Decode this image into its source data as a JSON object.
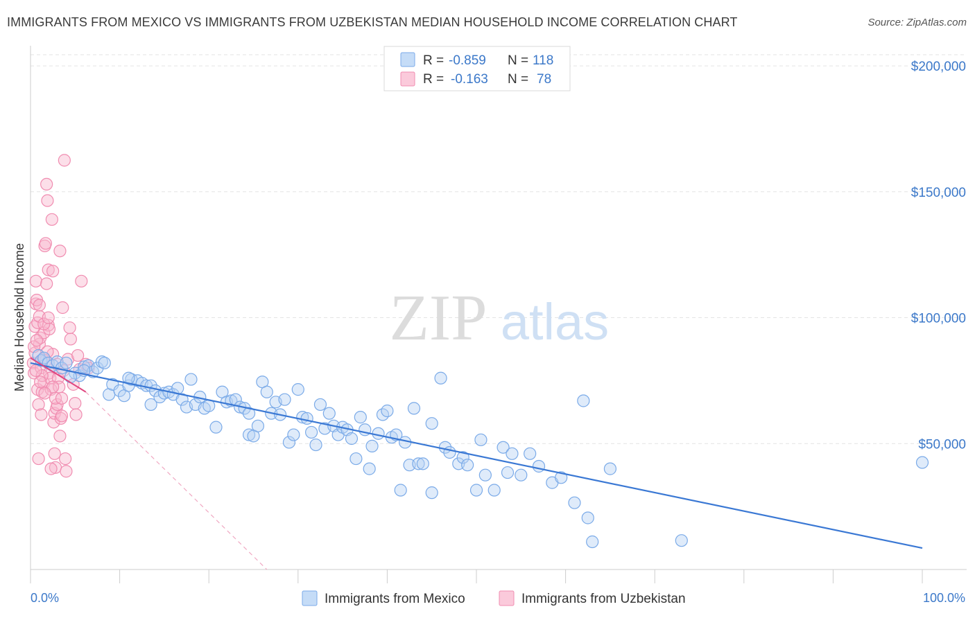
{
  "title": "IMMIGRANTS FROM MEXICO VS IMMIGRANTS FROM UZBEKISTAN MEDIAN HOUSEHOLD INCOME CORRELATION CHART",
  "source": "Source: ZipAtlas.com",
  "watermark": {
    "zip": "ZIP",
    "atlas": "atlas"
  },
  "stats": [
    {
      "r_label": "R =",
      "r": "-0.859",
      "n_label": "N =",
      "n": "118",
      "color": "#7aaae8"
    },
    {
      "r_label": "R =",
      "r": "-0.163",
      "n_label": "N =",
      "n": "78",
      "color": "#f08cb0"
    }
  ],
  "colors": {
    "mexico": "#7aaae8",
    "mexico_line": "#3a78d4",
    "uzbekistan": "#f08cb0",
    "uzbekistan_line": "#e0457f",
    "tick_text": "#3b78c9"
  },
  "chart_data": {
    "type": "scatter",
    "title": "IMMIGRANTS FROM MEXICO VS IMMIGRANTS FROM UZBEKISTAN MEDIAN HOUSEHOLD INCOME CORRELATION CHART",
    "xlabel": "",
    "ylabel": "Median Household Income",
    "xlim": [
      0,
      100
    ],
    "ylim": [
      0,
      208000
    ],
    "x_tick_labels": [
      "0.0%",
      "100.0%"
    ],
    "y_ticks": [
      50000,
      100000,
      150000,
      200000
    ],
    "y_tick_labels": [
      "$50,000",
      "$100,000",
      "$150,000",
      "$200,000"
    ],
    "grid": true,
    "legend_position": "bottom-center",
    "series": [
      {
        "name": "Immigrants from Mexico",
        "r": -0.859,
        "n": 118,
        "trend": {
          "x": [
            0,
            100
          ],
          "y": [
            82000,
            8500
          ]
        },
        "points": [
          [
            0.9,
            85000
          ],
          [
            1.2,
            83000
          ],
          [
            1.5,
            84000
          ],
          [
            2.0,
            82000
          ],
          [
            2.5,
            81000
          ],
          [
            3.0,
            82500
          ],
          [
            3.5,
            80000
          ],
          [
            4.0,
            82000
          ],
          [
            5.0,
            78000
          ],
          [
            5.5,
            77000
          ],
          [
            6.0,
            80500
          ],
          [
            6.5,
            81000
          ],
          [
            7.0,
            78500
          ],
          [
            7.5,
            80000
          ],
          [
            8.0,
            82500
          ],
          [
            8.3,
            82000
          ],
          [
            8.8,
            69500
          ],
          [
            9.2,
            73500
          ],
          [
            10.0,
            71000
          ],
          [
            10.5,
            69000
          ],
          [
            11.0,
            73000
          ],
          [
            11.3,
            75500
          ],
          [
            12.0,
            75000
          ],
          [
            12.5,
            74000
          ],
          [
            13.0,
            73000
          ],
          [
            13.5,
            73000
          ],
          [
            13.5,
            65500
          ],
          [
            14.0,
            71000
          ],
          [
            14.5,
            68500
          ],
          [
            15.0,
            70000
          ],
          [
            15.5,
            70500
          ],
          [
            16.0,
            69500
          ],
          [
            16.5,
            72000
          ],
          [
            17.0,
            67500
          ],
          [
            17.5,
            64500
          ],
          [
            18.0,
            75500
          ],
          [
            18.5,
            65500
          ],
          [
            19.0,
            68500
          ],
          [
            19.5,
            64000
          ],
          [
            20.0,
            65000
          ],
          [
            20.8,
            56500
          ],
          [
            21.5,
            70500
          ],
          [
            22.0,
            66500
          ],
          [
            22.5,
            67000
          ],
          [
            23.0,
            67500
          ],
          [
            23.5,
            64500
          ],
          [
            24.0,
            64000
          ],
          [
            24.5,
            62000
          ],
          [
            24.5,
            53500
          ],
          [
            25.0,
            53000
          ],
          [
            25.5,
            57000
          ],
          [
            26.0,
            74500
          ],
          [
            26.5,
            70500
          ],
          [
            27.0,
            62000
          ],
          [
            27.5,
            66500
          ],
          [
            28.0,
            61500
          ],
          [
            28.5,
            67500
          ],
          [
            29.0,
            50500
          ],
          [
            29.5,
            53500
          ],
          [
            30.0,
            71500
          ],
          [
            30.5,
            60500
          ],
          [
            31.0,
            60000
          ],
          [
            31.5,
            54500
          ],
          [
            32.0,
            49500
          ],
          [
            32.5,
            65500
          ],
          [
            33.0,
            56000
          ],
          [
            33.5,
            62000
          ],
          [
            34.0,
            57000
          ],
          [
            34.5,
            53500
          ],
          [
            35.0,
            56500
          ],
          [
            35.5,
            55500
          ],
          [
            36.0,
            52000
          ],
          [
            36.5,
            44000
          ],
          [
            37.0,
            60500
          ],
          [
            37.5,
            55500
          ],
          [
            38.0,
            40000
          ],
          [
            38.3,
            49000
          ],
          [
            39.0,
            54000
          ],
          [
            39.5,
            61500
          ],
          [
            40.0,
            63000
          ],
          [
            40.5,
            52500
          ],
          [
            41.0,
            53500
          ],
          [
            41.5,
            31500
          ],
          [
            42.0,
            50500
          ],
          [
            42.5,
            41500
          ],
          [
            43.0,
            64000
          ],
          [
            43.5,
            42000
          ],
          [
            44.0,
            42000
          ],
          [
            45.0,
            58000
          ],
          [
            45.0,
            30500
          ],
          [
            46.5,
            48500
          ],
          [
            47.0,
            46500
          ],
          [
            48.0,
            42000
          ],
          [
            48.5,
            44500
          ],
          [
            49.0,
            41500
          ],
          [
            50.0,
            31500
          ],
          [
            50.5,
            51500
          ],
          [
            51.0,
            37500
          ],
          [
            52.0,
            31500
          ],
          [
            53.0,
            48500
          ],
          [
            53.5,
            38500
          ],
          [
            54.0,
            46000
          ],
          [
            55.0,
            37500
          ],
          [
            56.0,
            46000
          ],
          [
            57.0,
            41000
          ],
          [
            58.5,
            34500
          ],
          [
            59.5,
            36500
          ],
          [
            61.0,
            26500
          ],
          [
            62.0,
            67000
          ],
          [
            62.5,
            20500
          ],
          [
            63.0,
            11000
          ],
          [
            65.0,
            40000
          ],
          [
            73.0,
            11500
          ],
          [
            100.0,
            42500
          ],
          [
            46.0,
            76000
          ],
          [
            4.5,
            76500
          ],
          [
            6.0,
            79000
          ],
          [
            11.0,
            76000
          ]
        ]
      },
      {
        "name": "Immigrants from Uzbekistan",
        "r": -0.163,
        "n": 78,
        "trend": {
          "x": [
            0,
            6.2
          ],
          "y": [
            84000,
            70500
          ]
        },
        "trend_dashed": {
          "x": [
            6.2,
            26.5
          ],
          "y": [
            70500,
            0
          ]
        },
        "points": [
          [
            0.3,
            82000
          ],
          [
            0.4,
            78000
          ],
          [
            0.5,
            86000
          ],
          [
            0.5,
            96500
          ],
          [
            0.6,
            105500
          ],
          [
            0.6,
            114500
          ],
          [
            0.7,
            107000
          ],
          [
            0.8,
            98000
          ],
          [
            0.8,
            71500
          ],
          [
            0.9,
            65500
          ],
          [
            0.9,
            44000
          ],
          [
            1.0,
            89500
          ],
          [
            1.0,
            100500
          ],
          [
            1.1,
            92000
          ],
          [
            1.2,
            80000
          ],
          [
            1.2,
            61500
          ],
          [
            1.3,
            70500
          ],
          [
            1.4,
            83500
          ],
          [
            1.5,
            94000
          ],
          [
            1.5,
            74000
          ],
          [
            1.6,
            128500
          ],
          [
            1.7,
            129500
          ],
          [
            1.8,
            113500
          ],
          [
            1.8,
            153000
          ],
          [
            1.9,
            146500
          ],
          [
            2.0,
            119000
          ],
          [
            2.0,
            97000
          ],
          [
            2.1,
            95500
          ],
          [
            2.1,
            78000
          ],
          [
            2.2,
            76000
          ],
          [
            2.3,
            71500
          ],
          [
            2.4,
            139000
          ],
          [
            2.5,
            118500
          ],
          [
            2.5,
            85500
          ],
          [
            2.6,
            58500
          ],
          [
            2.7,
            62000
          ],
          [
            2.7,
            46000
          ],
          [
            2.8,
            40500
          ],
          [
            2.9,
            64000
          ],
          [
            3.0,
            65500
          ],
          [
            3.0,
            81500
          ],
          [
            3.1,
            76000
          ],
          [
            3.2,
            72500
          ],
          [
            3.3,
            126500
          ],
          [
            3.3,
            53000
          ],
          [
            3.4,
            60000
          ],
          [
            3.5,
            61000
          ],
          [
            3.6,
            104000
          ],
          [
            3.7,
            79000
          ],
          [
            3.8,
            162500
          ],
          [
            3.9,
            44000
          ],
          [
            4.0,
            39000
          ],
          [
            4.2,
            83500
          ],
          [
            4.5,
            91500
          ],
          [
            4.8,
            73500
          ],
          [
            5.0,
            66000
          ],
          [
            5.1,
            61500
          ],
          [
            5.3,
            85000
          ],
          [
            5.5,
            79500
          ],
          [
            5.7,
            114500
          ],
          [
            6.2,
            81500
          ],
          [
            6.5,
            80000
          ],
          [
            0.4,
            88500
          ],
          [
            0.7,
            91000
          ],
          [
            1.0,
            105000
          ],
          [
            1.5,
            97500
          ],
          [
            2.0,
            100000
          ],
          [
            2.3,
            40000
          ],
          [
            2.8,
            68000
          ],
          [
            1.3,
            77000
          ],
          [
            1.7,
            83000
          ],
          [
            2.5,
            72500
          ],
          [
            3.5,
            68000
          ],
          [
            1.9,
            86500
          ],
          [
            0.6,
            79000
          ],
          [
            1.1,
            74500
          ],
          [
            4.4,
            96000
          ],
          [
            1.6,
            70000
          ]
        ]
      }
    ]
  }
}
